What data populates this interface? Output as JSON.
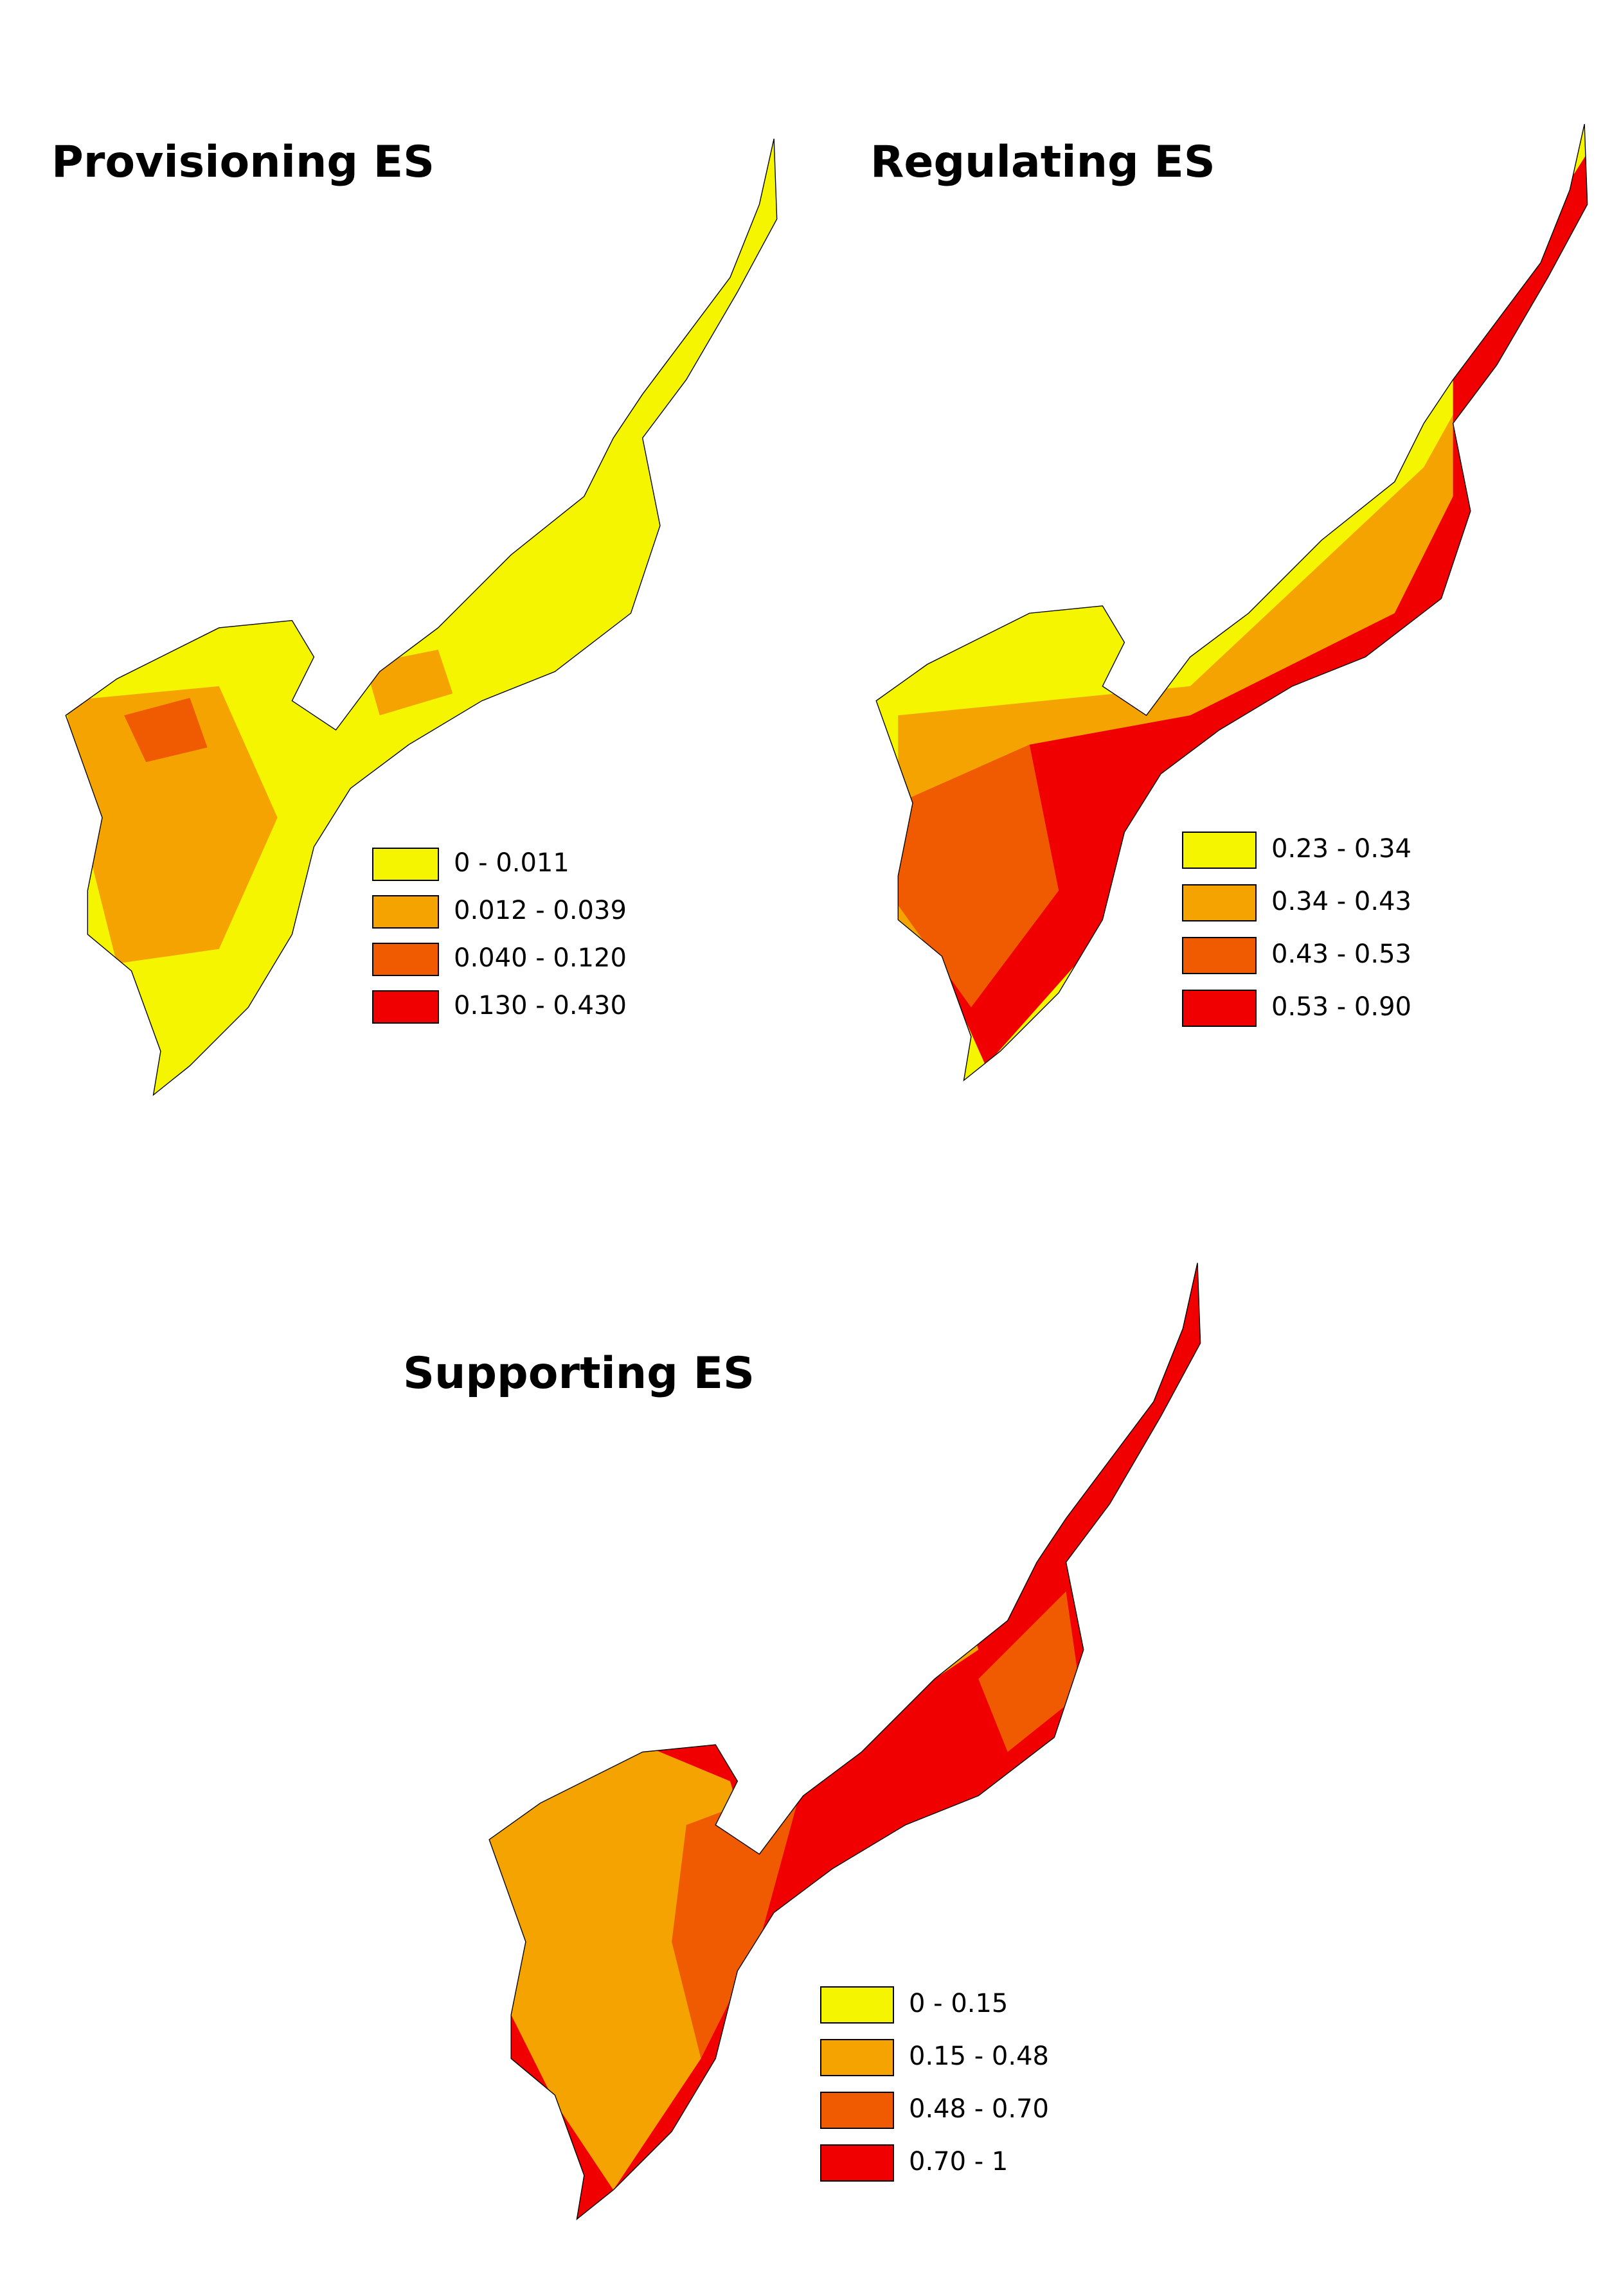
{
  "maps": [
    {
      "title": "Provisioning ES",
      "legend": [
        {
          "label": "0 - 0.011",
          "color": "#f5f500"
        },
        {
          "label": "0.012 - 0.039",
          "color": "#f5a300"
        },
        {
          "label": "0.040 - 0.120",
          "color": "#f05a00"
        },
        {
          "label": "0.130 - 0.430",
          "color": "#f00000"
        }
      ]
    },
    {
      "title": "Regulating ES",
      "legend": [
        {
          "label": "0.23 - 0.34",
          "color": "#f5f500"
        },
        {
          "label": "0.34 - 0.43",
          "color": "#f5a300"
        },
        {
          "label": "0.43 - 0.53",
          "color": "#f05a00"
        },
        {
          "label": "0.53 - 0.90",
          "color": "#f00000"
        }
      ]
    },
    {
      "title": "Supporting ES",
      "legend": [
        {
          "label": "0 - 0.15",
          "color": "#f5f500"
        },
        {
          "label": "0.15 - 0.48",
          "color": "#f5a300"
        },
        {
          "label": "0.48 - 0.70",
          "color": "#f05a00"
        },
        {
          "label": "0.70 - 1",
          "color": "#f00000"
        }
      ]
    }
  ]
}
